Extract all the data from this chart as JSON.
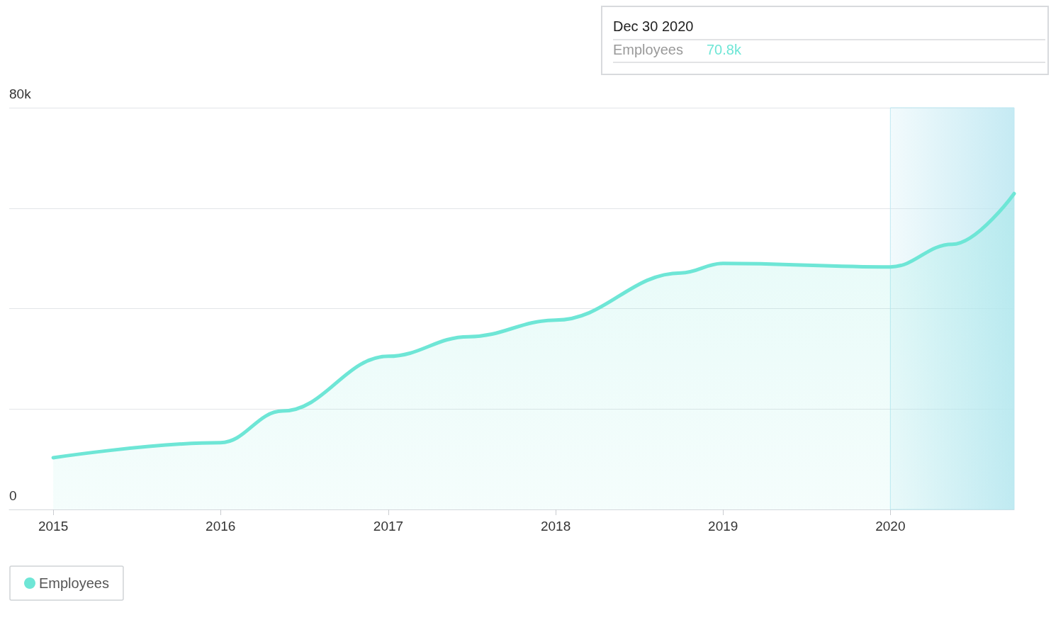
{
  "chart_data": {
    "type": "area",
    "annotations": [
      "Dec 30 2020",
      "Employees",
      "70.8k"
    ],
    "x": [
      "2015-01-01",
      "2016-01-01",
      "2016-05-15",
      "2017-01-01",
      "2017-06-25",
      "2018-01-01",
      "2018-10-01",
      "2019-01-01",
      "2020-01-01",
      "2020-05-15",
      "2020-09-27"
    ],
    "series": [
      {
        "name": "Employees",
        "color": "#6ee6d6",
        "values": [
          10300,
          13300,
          19600,
          30500,
          34400,
          37700,
          47100,
          49000,
          48300,
          52800,
          62900
        ]
      }
    ],
    "xlim": [
      "2014-09-27",
      "2020-09-27"
    ],
    "xticks": [
      {
        "value": "2015-01-01",
        "label": "2015"
      },
      {
        "value": "2016-01-01",
        "label": "2016"
      },
      {
        "value": "2017-01-01",
        "label": "2017"
      },
      {
        "value": "2018-01-01",
        "label": "2018"
      },
      {
        "value": "2019-01-01",
        "label": "2019"
      },
      {
        "value": "2020-01-01",
        "label": "2020"
      }
    ],
    "ylim": [
      0,
      80000
    ],
    "yticks": [
      {
        "value": 0,
        "label": "0"
      },
      {
        "value": 20000,
        "label": null
      },
      {
        "value": 40000,
        "label": null
      },
      {
        "value": 60000,
        "label": null
      },
      {
        "value": 80000,
        "label": "80k"
      }
    ],
    "bands": [
      {
        "axis": "x",
        "from": "2020-01-01",
        "to": "2020-09-27",
        "color": "#bfe8f2"
      }
    ],
    "grid": "y",
    "legend": "bottom left",
    "marker": "none",
    "line_style": "solid"
  }
}
